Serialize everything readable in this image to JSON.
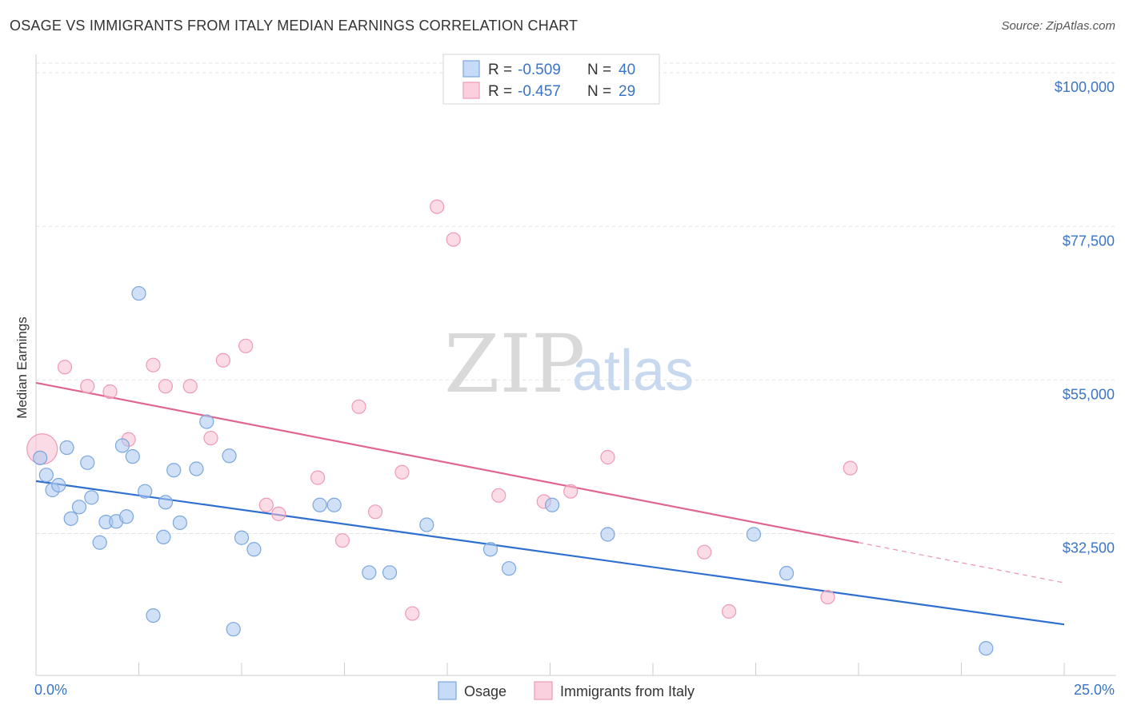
{
  "title": "OSAGE VS IMMIGRANTS FROM ITALY MEDIAN EARNINGS CORRELATION CHART",
  "source": "Source: ZipAtlas.com",
  "watermark": {
    "zip": "ZIP",
    "atlas": "atlas"
  },
  "legend": [
    {
      "r_label": "R =",
      "r_value": "-0.509",
      "n_label": "N =",
      "n_value": "40"
    },
    {
      "r_label": "R =",
      "r_value": "-0.457",
      "n_label": "N =",
      "n_value": "29"
    }
  ],
  "colors": {
    "osage": "#6fa3e0",
    "osage_line": "#2f6fcf",
    "italy": "#f29ab6",
    "italy_line": "#e06690",
    "tick": "#3a74c4"
  },
  "chart_data": {
    "type": "scatter",
    "ylabel": "Median Earnings",
    "xlim": [
      0,
      25
    ],
    "ylim": [
      15000,
      104000
    ],
    "x_tick_labels": [
      {
        "v": 0,
        "label": "0.0%"
      },
      {
        "v": 25,
        "label": "25.0%"
      }
    ],
    "y_ticks": [
      {
        "v": 32500,
        "label": "$32,500"
      },
      {
        "v": 55000,
        "label": "$55,000"
      },
      {
        "v": 77500,
        "label": "$77,500"
      },
      {
        "v": 100000,
        "label": "$100,000"
      }
    ],
    "series": [
      {
        "name": "Osage",
        "trend": {
          "x": [
            0,
            25
          ],
          "y": [
            42300,
            21300
          ]
        },
        "points": [
          [
            0.1,
            45700
          ],
          [
            0.25,
            43200
          ],
          [
            0.4,
            41000
          ],
          [
            0.55,
            41700
          ],
          [
            0.75,
            47200
          ],
          [
            0.85,
            36800
          ],
          [
            1.05,
            38500
          ],
          [
            1.25,
            45000
          ],
          [
            1.35,
            39900
          ],
          [
            1.55,
            33300
          ],
          [
            1.7,
            36300
          ],
          [
            1.95,
            36400
          ],
          [
            2.1,
            47500
          ],
          [
            2.2,
            37100
          ],
          [
            2.35,
            45900
          ],
          [
            2.5,
            69800
          ],
          [
            2.65,
            40800
          ],
          [
            2.85,
            22600
          ],
          [
            3.1,
            34100
          ],
          [
            3.15,
            39200
          ],
          [
            3.35,
            43900
          ],
          [
            3.5,
            36200
          ],
          [
            3.9,
            44100
          ],
          [
            4.15,
            51000
          ],
          [
            4.7,
            46000
          ],
          [
            4.8,
            20600
          ],
          [
            5.0,
            34000
          ],
          [
            5.3,
            32300
          ],
          [
            6.9,
            38800
          ],
          [
            7.25,
            38800
          ],
          [
            8.1,
            28900
          ],
          [
            8.6,
            28900
          ],
          [
            9.5,
            35900
          ],
          [
            11.05,
            32300
          ],
          [
            11.5,
            29500
          ],
          [
            12.55,
            38800
          ],
          [
            13.9,
            34500
          ],
          [
            17.45,
            34500
          ],
          [
            18.25,
            28800
          ],
          [
            23.1,
            17800
          ]
        ]
      },
      {
        "name": "Immigrants from Italy",
        "trend": {
          "x": [
            0,
            20
          ],
          "y": [
            56700,
            33300
          ]
        },
        "trend_dashed": {
          "x": [
            20,
            25
          ],
          "y": [
            33300,
            27400
          ]
        },
        "points": [
          [
            0.15,
            47000
          ],
          [
            0.7,
            59000
          ],
          [
            1.25,
            56200
          ],
          [
            1.8,
            55400
          ],
          [
            2.25,
            48400
          ],
          [
            2.85,
            59300
          ],
          [
            3.15,
            56200
          ],
          [
            3.75,
            56200
          ],
          [
            4.25,
            48600
          ],
          [
            4.55,
            60000
          ],
          [
            5.1,
            62100
          ],
          [
            5.6,
            38800
          ],
          [
            5.9,
            37500
          ],
          [
            6.85,
            42800
          ],
          [
            7.45,
            33600
          ],
          [
            7.85,
            53200
          ],
          [
            8.25,
            37800
          ],
          [
            8.9,
            43600
          ],
          [
            9.15,
            22900
          ],
          [
            9.75,
            82500
          ],
          [
            10.15,
            77700
          ],
          [
            11.25,
            40200
          ],
          [
            12.35,
            39300
          ],
          [
            13.0,
            40800
          ],
          [
            13.9,
            45800
          ],
          [
            16.25,
            31900
          ],
          [
            16.85,
            23200
          ],
          [
            19.25,
            25300
          ],
          [
            19.8,
            44200
          ]
        ]
      }
    ]
  },
  "bottom_legend": [
    {
      "label": "Osage"
    },
    {
      "label": "Immigrants from Italy"
    }
  ]
}
